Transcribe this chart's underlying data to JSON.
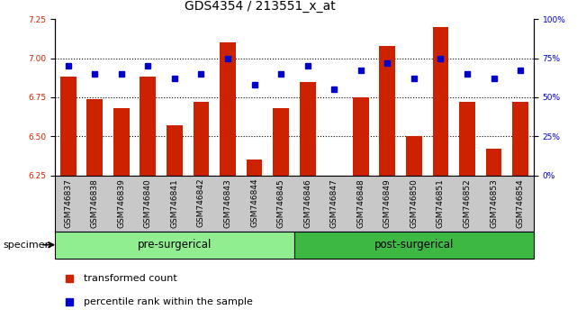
{
  "title": "GDS4354 / 213551_x_at",
  "samples": [
    "GSM746837",
    "GSM746838",
    "GSM746839",
    "GSM746840",
    "GSM746841",
    "GSM746842",
    "GSM746843",
    "GSM746844",
    "GSM746845",
    "GSM746846",
    "GSM746847",
    "GSM746848",
    "GSM746849",
    "GSM746850",
    "GSM746851",
    "GSM746852",
    "GSM746853",
    "GSM746854"
  ],
  "bar_values": [
    6.88,
    6.74,
    6.68,
    6.88,
    6.57,
    6.72,
    7.1,
    6.35,
    6.68,
    6.85,
    6.25,
    6.75,
    7.08,
    6.5,
    7.2,
    6.72,
    6.42,
    6.72
  ],
  "percentile_values": [
    70,
    65,
    65,
    70,
    62,
    65,
    75,
    58,
    65,
    70,
    55,
    67,
    72,
    62,
    75,
    65,
    62,
    67
  ],
  "bar_color": "#CC2200",
  "dot_color": "#0000CC",
  "ylim_left": [
    6.25,
    7.25
  ],
  "ylim_right": [
    0,
    100
  ],
  "yticks_left": [
    6.25,
    6.5,
    6.75,
    7.0,
    7.25
  ],
  "yticks_right": [
    0,
    25,
    50,
    75,
    100
  ],
  "ytick_labels_right": [
    "0%",
    "25%",
    "50%",
    "75%",
    "100%"
  ],
  "group1_label": "pre-surgerical",
  "group2_label": "post-surgerical",
  "group1_count": 9,
  "group2_count": 9,
  "specimen_label": "specimen",
  "legend_bar_label": "transformed count",
  "legend_dot_label": "percentile rank within the sample",
  "bar_width": 0.6,
  "group1_bg": "#90EE90",
  "group2_bg": "#3CB843",
  "xtick_bg": "#C8C8C8",
  "title_fontsize": 10,
  "tick_fontsize": 6.5,
  "axis_label_fontsize": 8
}
